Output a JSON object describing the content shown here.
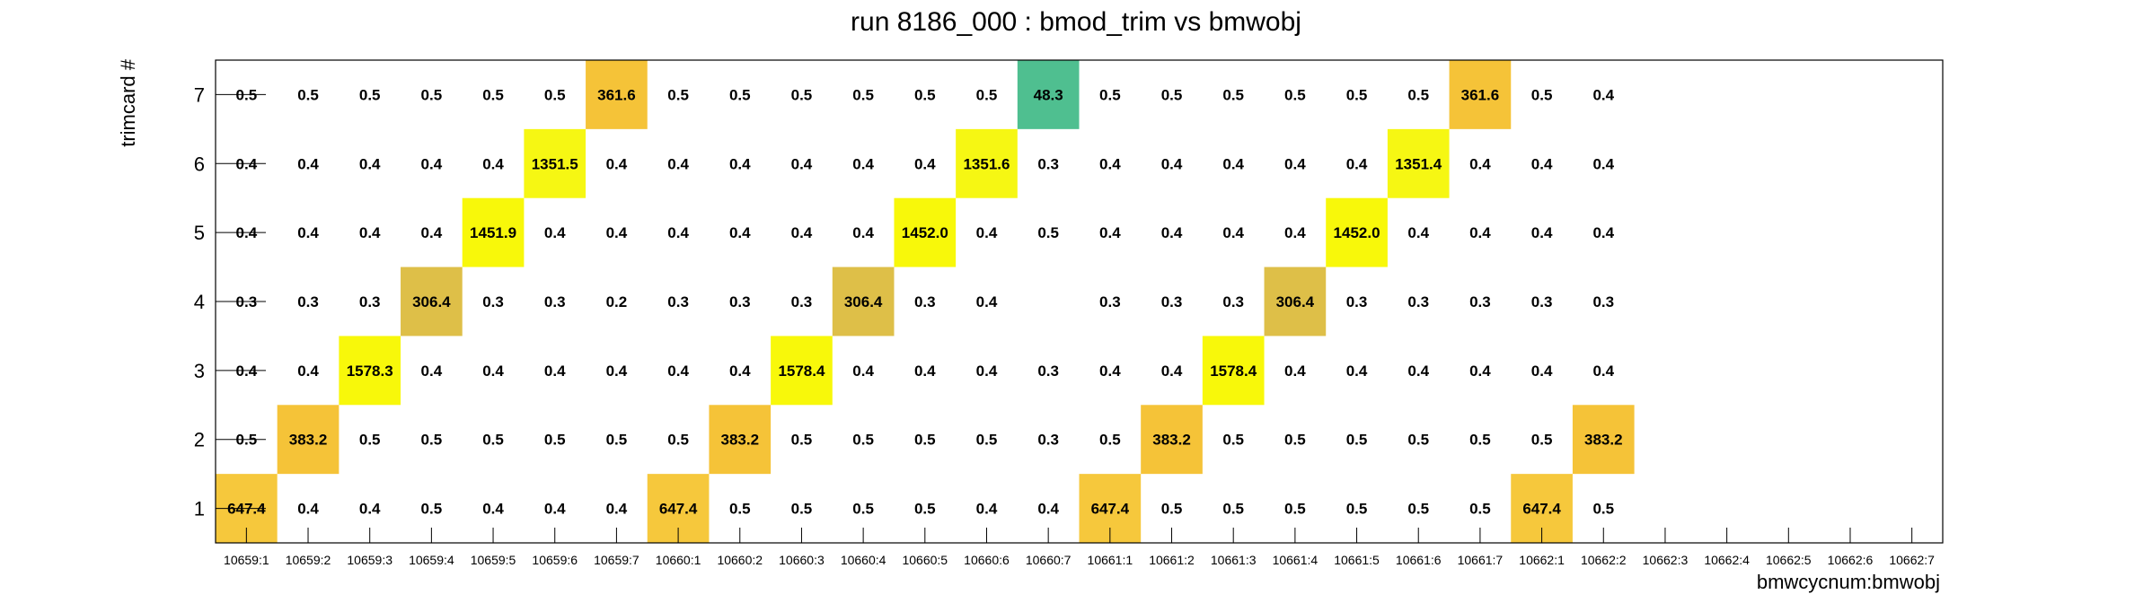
{
  "chart_data": {
    "type": "heatmap",
    "title": "run 8186_000 : bmod_trim vs bmwobj",
    "xlabel": "bmwcycnum:bmwobj",
    "ylabel": "trimcard #",
    "x_categories": [
      "10659:1",
      "10659:2",
      "10659:3",
      "10659:4",
      "10659:5",
      "10659:6",
      "10659:7",
      "10660:1",
      "10660:2",
      "10660:3",
      "10660:4",
      "10660:5",
      "10660:6",
      "10660:7",
      "10661:1",
      "10661:2",
      "10661:3",
      "10661:4",
      "10661:5",
      "10661:6",
      "10661:7",
      "10662:1",
      "10662:2",
      "10662:3",
      "10662:4",
      "10662:5",
      "10662:6",
      "10662:7"
    ],
    "y_categories": [
      "1",
      "2",
      "3",
      "4",
      "5",
      "6",
      "7"
    ],
    "grid": false,
    "rows": [
      {
        "y": "7",
        "values": [
          "0.5",
          "0.5",
          "0.5",
          "0.5",
          "0.5",
          "0.5",
          "361.6",
          "0.5",
          "0.5",
          "0.5",
          "0.5",
          "0.5",
          "0.5",
          "48.3",
          "0.5",
          "0.5",
          "0.5",
          "0.5",
          "0.5",
          "0.5",
          "361.6",
          "0.5",
          "0.4",
          null,
          null,
          null,
          null,
          null
        ]
      },
      {
        "y": "6",
        "values": [
          "0.4",
          "0.4",
          "0.4",
          "0.4",
          "0.4",
          "1351.5",
          "0.4",
          "0.4",
          "0.4",
          "0.4",
          "0.4",
          "0.4",
          "1351.6",
          "0.3",
          "0.4",
          "0.4",
          "0.4",
          "0.4",
          "0.4",
          "1351.4",
          "0.4",
          "0.4",
          "0.4",
          null,
          null,
          null,
          null,
          null
        ]
      },
      {
        "y": "5",
        "values": [
          "0.4",
          "0.4",
          "0.4",
          "0.4",
          "1451.9",
          "0.4",
          "0.4",
          "0.4",
          "0.4",
          "0.4",
          "0.4",
          "1452.0",
          "0.4",
          "0.5",
          "0.4",
          "0.4",
          "0.4",
          "0.4",
          "1452.0",
          "0.4",
          "0.4",
          "0.4",
          "0.4",
          null,
          null,
          null,
          null,
          null
        ]
      },
      {
        "y": "4",
        "values": [
          "0.3",
          "0.3",
          "0.3",
          "306.4",
          "0.3",
          "0.3",
          "0.2",
          "0.3",
          "0.3",
          "0.3",
          "306.4",
          "0.3",
          "0.4",
          null,
          "0.3",
          "0.3",
          "0.3",
          "306.4",
          "0.3",
          "0.3",
          "0.3",
          "0.3",
          "0.3",
          null,
          null,
          null,
          null,
          null
        ]
      },
      {
        "y": "3",
        "values": [
          "0.4",
          "0.4",
          "1578.3",
          "0.4",
          "0.4",
          "0.4",
          "0.4",
          "0.4",
          "0.4",
          "1578.4",
          "0.4",
          "0.4",
          "0.4",
          "0.3",
          "0.4",
          "0.4",
          "1578.4",
          "0.4",
          "0.4",
          "0.4",
          "0.4",
          "0.4",
          "0.4",
          null,
          null,
          null,
          null,
          null
        ]
      },
      {
        "y": "2",
        "values": [
          "0.5",
          "383.2",
          "0.5",
          "0.5",
          "0.5",
          "0.5",
          "0.5",
          "0.5",
          "383.2",
          "0.5",
          "0.5",
          "0.5",
          "0.5",
          "0.3",
          "0.5",
          "383.2",
          "0.5",
          "0.5",
          "0.5",
          "0.5",
          "0.5",
          "0.5",
          "383.2",
          null,
          null,
          null,
          null,
          null
        ]
      },
      {
        "y": "1",
        "values": [
          "647.4",
          "0.4",
          "0.4",
          "0.5",
          "0.4",
          "0.4",
          "0.4",
          "647.4",
          "0.5",
          "0.5",
          "0.5",
          "0.5",
          "0.4",
          "0.4",
          "647.4",
          "0.5",
          "0.5",
          "0.5",
          "0.5",
          "0.5",
          "0.5",
          "647.4",
          "0.5",
          null,
          null,
          null,
          null,
          null
        ]
      }
    ],
    "color_scale": [
      {
        "min": 1400,
        "color": "#f8f80a"
      },
      {
        "min": 1000,
        "color": "#f6f713"
      },
      {
        "min": 500,
        "color": "#f6c83c"
      },
      {
        "min": 340,
        "color": "#f5c338"
      },
      {
        "min": 200,
        "color": "#debf48"
      },
      {
        "min": 30,
        "color": "#4fbf90"
      }
    ],
    "highlight_threshold": 1.0
  }
}
